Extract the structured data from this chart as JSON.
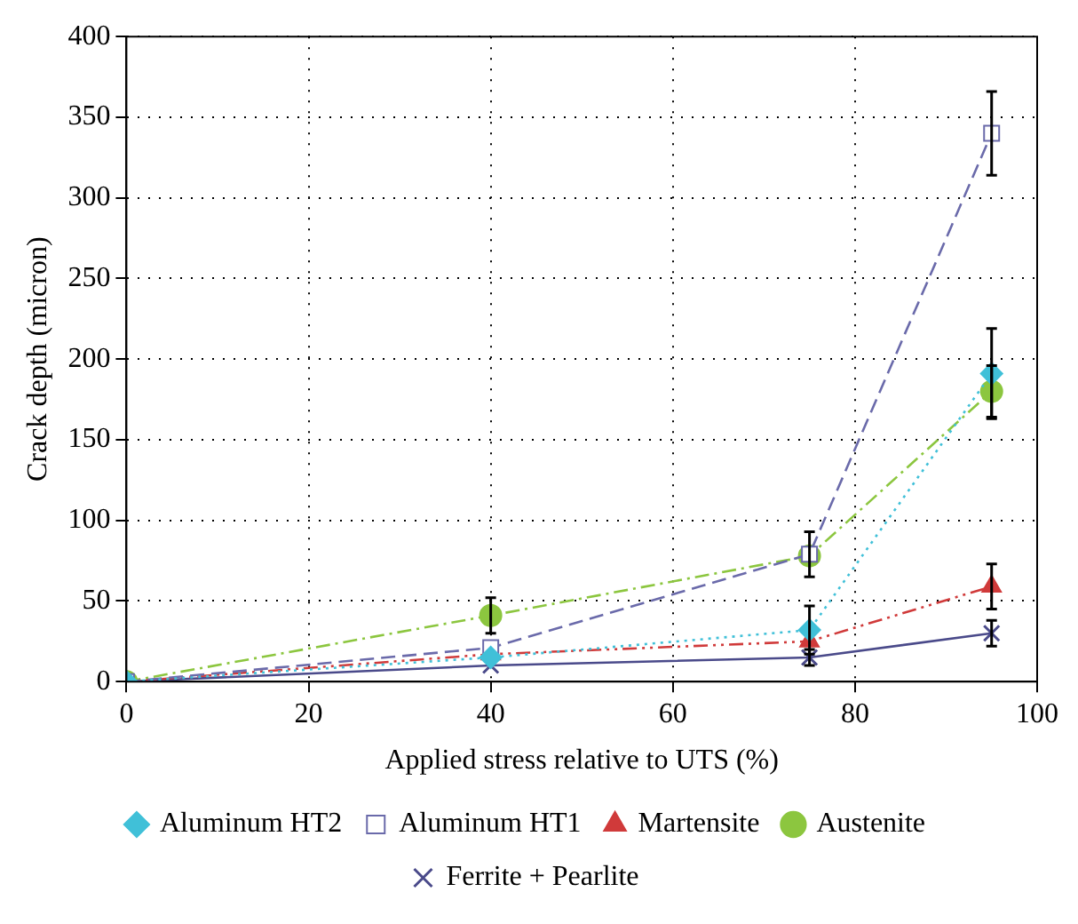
{
  "chart_data": {
    "type": "line",
    "xlabel": "Applied stress relative to UTS (%)",
    "ylabel": "Crack depth (micron)",
    "x": [
      0,
      40,
      75,
      95
    ],
    "xlim": [
      0,
      100
    ],
    "xticks": [
      0,
      20,
      40,
      60,
      80,
      100
    ],
    "ylim": [
      0,
      400
    ],
    "yticks": [
      0,
      50,
      100,
      150,
      200,
      250,
      300,
      350,
      400
    ],
    "grid": true,
    "legend": "bottom",
    "series": [
      {
        "name": "Ferrite + Pearlite",
        "color": "#4a4a8a",
        "values": [
          0,
          10,
          15,
          30
        ],
        "errors": [
          null,
          null,
          5,
          8
        ],
        "marker": "cross",
        "line_style": "solid"
      },
      {
        "name": "Austenite",
        "color": "#8cc63f",
        "values": [
          0,
          41,
          78,
          180
        ],
        "errors": [
          null,
          11,
          null,
          16
        ],
        "marker": "circle",
        "line_style": "dashdot"
      },
      {
        "name": "Martensite",
        "color": "#d03a3a",
        "values": [
          0,
          17,
          25,
          59
        ],
        "errors": [
          null,
          null,
          null,
          14
        ],
        "marker": "triangle",
        "line_style": "dashdotdot"
      },
      {
        "name": "Aluminum HT1",
        "color": "#6a6aaa",
        "values": [
          0,
          21,
          79,
          340
        ],
        "errors": [
          null,
          null,
          14,
          26
        ],
        "marker": "square",
        "line_style": "dashed"
      },
      {
        "name": "Aluminum HT2",
        "color": "#40c0d8",
        "values": [
          0,
          15,
          32,
          191
        ],
        "errors": [
          null,
          null,
          15,
          28
        ],
        "marker": "diamond",
        "line_style": "dotted"
      }
    ]
  }
}
